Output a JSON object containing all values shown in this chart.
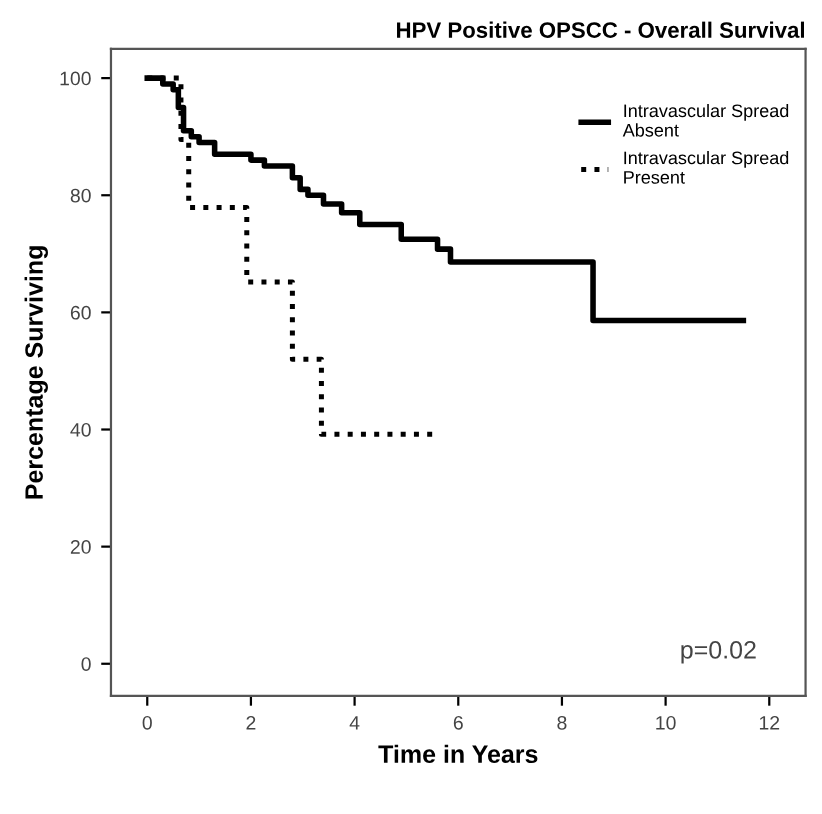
{
  "chart_data": {
    "type": "step",
    "title": "HPV Positive OPSCC - Overall Survival",
    "xlabel": "Time in Years",
    "ylabel": "Percentage Surviving",
    "xlim": [
      -0.7,
      12.7
    ],
    "ylim": [
      -5.5,
      105
    ],
    "xticks": [
      0,
      2,
      4,
      6,
      8,
      10,
      12
    ],
    "yticks": [
      0,
      20,
      40,
      60,
      80,
      100
    ],
    "grid": false,
    "legend": "top right",
    "series": [
      {
        "name": "Intravascular Spread\nAbsent",
        "color": "#000000",
        "line_style": "solid",
        "x": [
          0,
          0.3,
          0.5,
          0.6,
          0.7,
          0.85,
          1.0,
          1.3,
          2.0,
          2.26,
          2.8,
          2.95,
          3.1,
          3.4,
          3.75,
          4.1,
          4.9,
          5.6,
          5.85,
          8.6,
          11.5
        ],
        "values": [
          100,
          99,
          98,
          95,
          91,
          90,
          89,
          87,
          86,
          85,
          83,
          81,
          80,
          78.5,
          77,
          75,
          72.5,
          70.8,
          68.6,
          58.6,
          58.6
        ]
      },
      {
        "name": "Intravascular Spread\nPresent",
        "color": "#000000",
        "line_style": "dotted",
        "x": [
          0,
          0.65,
          0.8,
          1.92,
          2.8,
          3.36,
          5.5
        ],
        "values": [
          100,
          89.5,
          77.9,
          65.2,
          52.0,
          39.2,
          39.2
        ]
      }
    ],
    "annotations": [
      "p=0.02"
    ]
  }
}
